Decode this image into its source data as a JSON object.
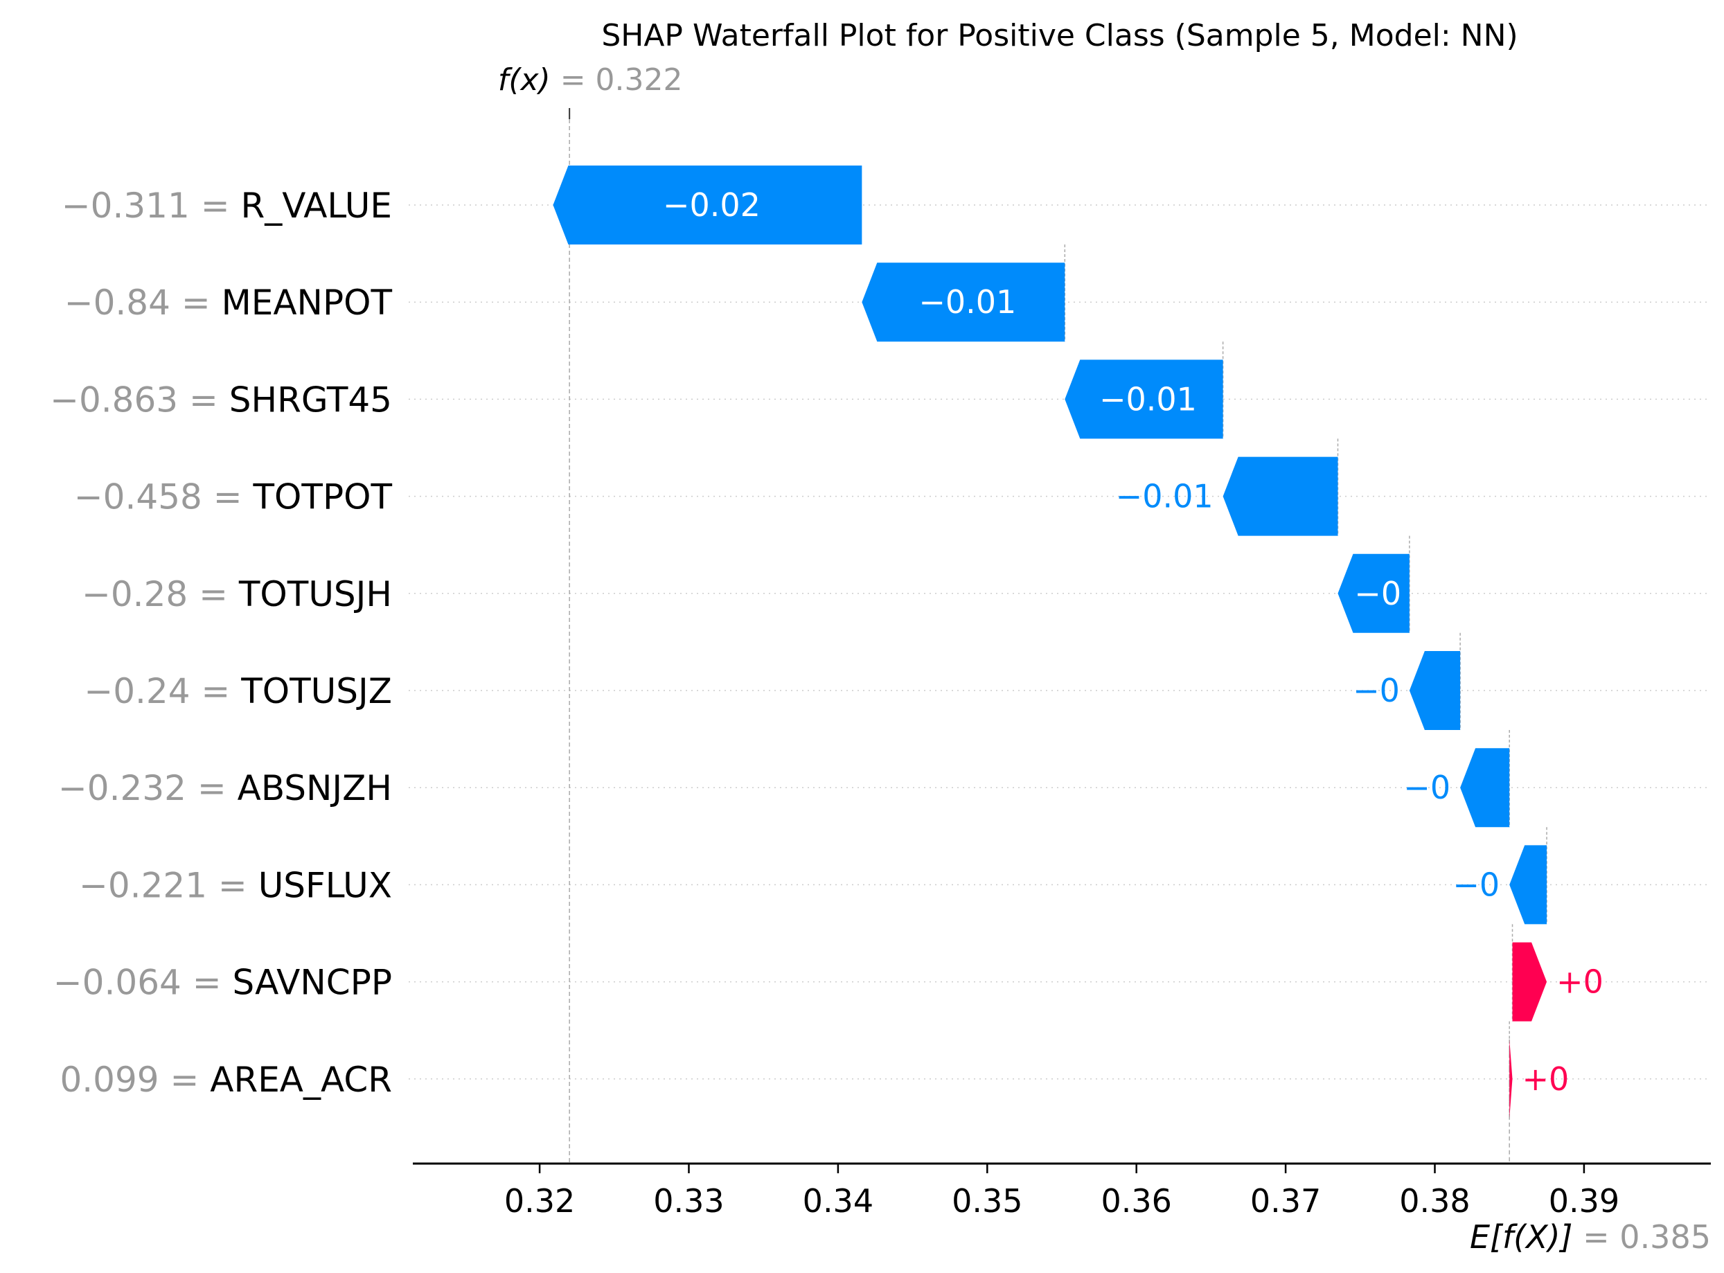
{
  "chart_data": {
    "type": "waterfall",
    "title": "SHAP Waterfall Plot for Positive Class (Sample 5, Model: NN)",
    "fx_label": "f(x)",
    "fx_value": "0.322",
    "efx_label": "E[f(X)]",
    "efx_value": "0.385",
    "base_value": 0.385,
    "output_value": 0.322,
    "xlim": [
      0.3115,
      0.3985
    ],
    "x_ticks": [
      0.32,
      0.33,
      0.34,
      0.35,
      0.36,
      0.37,
      0.38,
      0.39
    ],
    "x_tick_labels": [
      "0.32",
      "0.33",
      "0.34",
      "0.35",
      "0.36",
      "0.37",
      "0.38",
      "0.39"
    ],
    "features": [
      {
        "name": "R_VALUE",
        "value_text": "−0.311",
        "shap": -0.0207,
        "label": "−0.02"
      },
      {
        "name": "MEANPOT",
        "value_text": "−0.84",
        "shap": -0.0136,
        "label": "−0.01"
      },
      {
        "name": "SHRGT45",
        "value_text": "−0.863",
        "shap": -0.0106,
        "label": "−0.01"
      },
      {
        "name": "TOTPOT",
        "value_text": "−0.458",
        "shap": -0.0077,
        "label": "−0.01"
      },
      {
        "name": "TOTUSJH",
        "value_text": "−0.28",
        "shap": -0.0048,
        "label": "−0"
      },
      {
        "name": "TOTUSJZ",
        "value_text": "−0.24",
        "shap": -0.0034,
        "label": "−0"
      },
      {
        "name": "ABSNJZH",
        "value_text": "−0.232",
        "shap": -0.0033,
        "label": "−0"
      },
      {
        "name": "USFLUX",
        "value_text": "−0.221",
        "shap": -0.0025,
        "label": "−0"
      },
      {
        "name": "SAVNCPP",
        "value_text": "−0.064",
        "shap": 0.0023,
        "label": "+0"
      },
      {
        "name": "AREA_ACR",
        "value_text": "0.099",
        "shap": 0.0002,
        "label": "+0"
      }
    ],
    "colors": {
      "negative": "#008bfb",
      "positive": "#ff0051",
      "muted": "#999999"
    }
  }
}
